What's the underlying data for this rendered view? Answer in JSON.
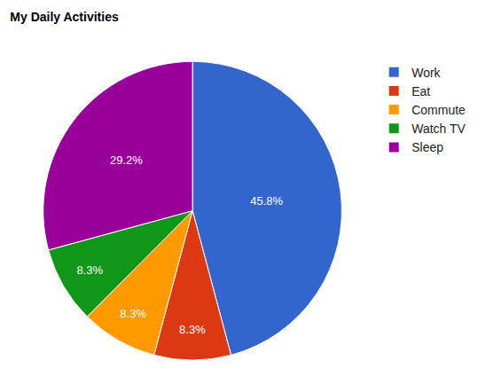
{
  "chart_data": {
    "type": "pie",
    "title": "My Daily Activities",
    "categories": [
      "Work",
      "Eat",
      "Commute",
      "Watch TV",
      "Sleep"
    ],
    "values": [
      45.8,
      8.3,
      8.3,
      8.3,
      29.2
    ],
    "value_labels": [
      "45.8%",
      "8.3%",
      "8.3%",
      "8.3%",
      "29.2%"
    ],
    "colors": [
      "#3366cc",
      "#dc3912",
      "#ff9900",
      "#109618",
      "#990099"
    ],
    "data_labels": true,
    "legend": "top-right"
  }
}
